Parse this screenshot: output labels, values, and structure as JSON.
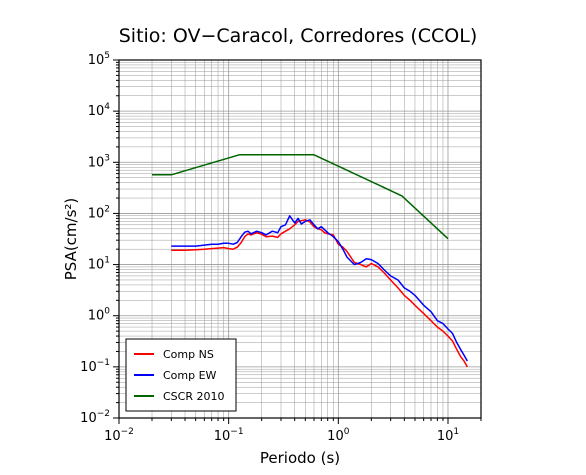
{
  "chart_data": {
    "type": "line",
    "title": "Sitio: OV−Caracol, Corredores (CCOL)",
    "xlabel": "Periodo (s)",
    "ylabel": "PSA(cm/s²)",
    "xscale": "log",
    "yscale": "log",
    "xlim": [
      0.01,
      20
    ],
    "ylim": [
      0.01,
      100000
    ],
    "x_ticks": [
      "10⁻²",
      "10⁻¹",
      "10⁰",
      "10¹"
    ],
    "y_ticks": [
      "10⁻²",
      "10⁻¹",
      "10⁰",
      "10¹",
      "10²",
      "10³",
      "10⁴",
      "10⁵"
    ],
    "grid": true,
    "legend_position": "bottom-left",
    "series": [
      {
        "name": "Comp NS",
        "color": "#ff0000",
        "x": [
          0.03,
          0.04,
          0.05,
          0.06,
          0.07,
          0.08,
          0.09,
          0.1,
          0.11,
          0.12,
          0.13,
          0.14,
          0.15,
          0.16,
          0.18,
          0.2,
          0.22,
          0.25,
          0.28,
          0.3,
          0.33,
          0.36,
          0.4,
          0.43,
          0.46,
          0.5,
          0.55,
          0.6,
          0.65,
          0.7,
          0.75,
          0.8,
          0.9,
          1.0,
          1.1,
          1.2,
          1.4,
          1.6,
          1.8,
          2.0,
          2.3,
          2.6,
          3.0,
          3.5,
          4.0,
          4.5,
          5.0,
          6.0,
          7.0,
          8.0,
          9.0,
          10.0,
          11.0,
          12.0,
          13.0,
          14.0,
          15.0
        ],
        "y": [
          19,
          19,
          19.5,
          20,
          20.5,
          21,
          21.5,
          20.5,
          20,
          22,
          27,
          35,
          40,
          38,
          42,
          39,
          35,
          36,
          34,
          40,
          45,
          50,
          60,
          70,
          72,
          75,
          68,
          55,
          50,
          48,
          42,
          40,
          38,
          25,
          22,
          18,
          11,
          10,
          9,
          10.5,
          9,
          7,
          5,
          3.5,
          2.5,
          2,
          1.6,
          1.1,
          0.8,
          0.6,
          0.5,
          0.4,
          0.32,
          0.22,
          0.16,
          0.13,
          0.1
        ]
      },
      {
        "name": "Comp EW",
        "color": "#0000ff",
        "x": [
          0.03,
          0.04,
          0.05,
          0.06,
          0.07,
          0.08,
          0.09,
          0.1,
          0.11,
          0.12,
          0.13,
          0.14,
          0.15,
          0.16,
          0.18,
          0.2,
          0.22,
          0.25,
          0.28,
          0.3,
          0.33,
          0.36,
          0.4,
          0.43,
          0.46,
          0.5,
          0.55,
          0.6,
          0.65,
          0.7,
          0.75,
          0.8,
          0.9,
          1.0,
          1.1,
          1.2,
          1.4,
          1.6,
          1.8,
          2.0,
          2.3,
          2.6,
          3.0,
          3.5,
          4.0,
          4.5,
          5.0,
          6.0,
          7.0,
          8.0,
          9.0,
          10.0,
          11.0,
          12.0,
          13.0,
          14.0,
          15.0
        ],
        "y": [
          23,
          23,
          23,
          24,
          25,
          25,
          26,
          26,
          25,
          27,
          35,
          43,
          45,
          40,
          45,
          42,
          38,
          45,
          42,
          55,
          60,
          90,
          65,
          80,
          62,
          70,
          75,
          60,
          50,
          55,
          48,
          42,
          35,
          28,
          20,
          14,
          10,
          11,
          13,
          12.5,
          10.5,
          8,
          6,
          5,
          3.5,
          3,
          2.5,
          1.6,
          1.2,
          0.8,
          0.7,
          0.55,
          0.45,
          0.3,
          0.22,
          0.17,
          0.13
        ]
      },
      {
        "name": "CSCR 2010",
        "color": "#006400",
        "x": [
          0.02,
          0.03,
          0.125,
          0.6,
          3.8,
          10.0
        ],
        "y": [
          570,
          570,
          1400,
          1400,
          220,
          32
        ]
      }
    ]
  }
}
